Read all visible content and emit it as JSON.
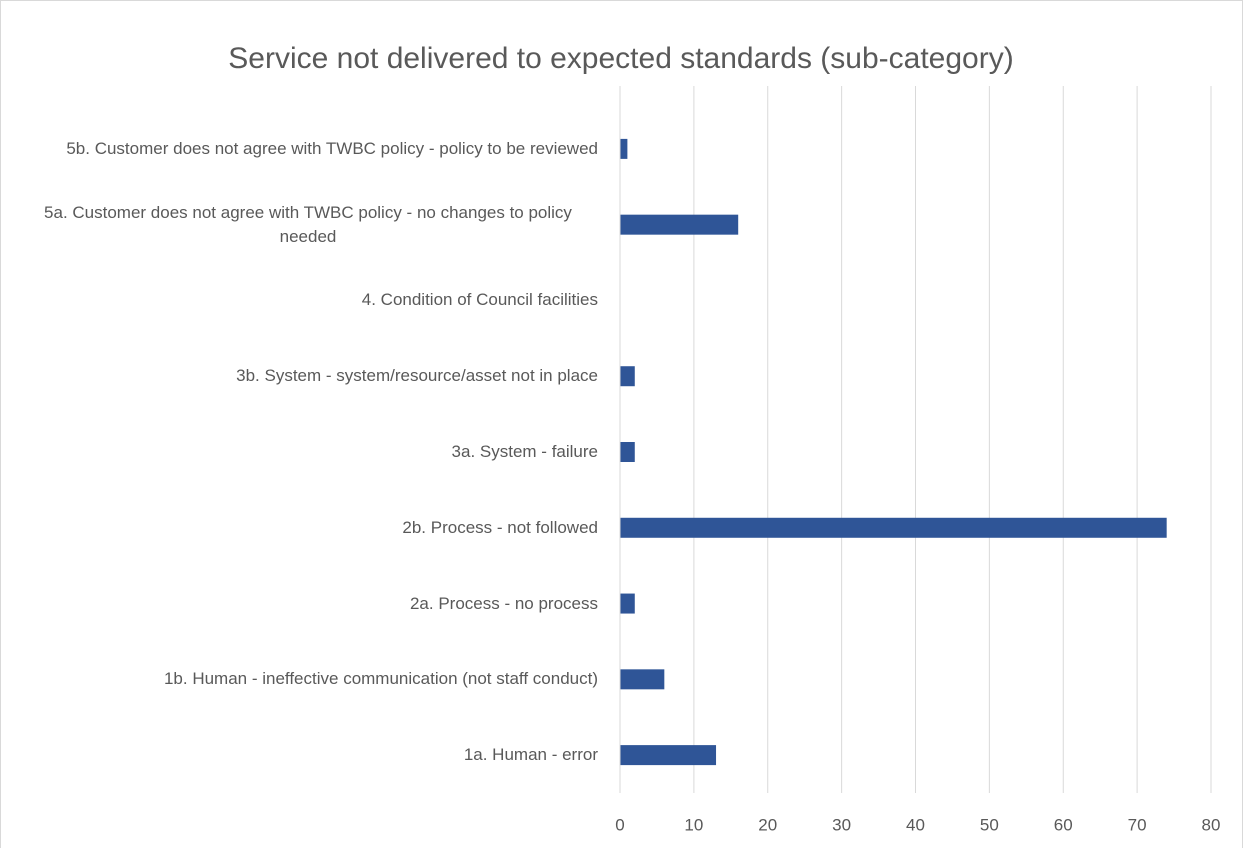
{
  "chart_data": {
    "type": "hbar",
    "title": "Service not delivered to expected standards (sub-category)",
    "categories": [
      "5b. Customer does not agree with TWBC policy - policy to be reviewed",
      "5a. Customer does not agree with TWBC policy - no changes to policy needed",
      "4. Condition of Council facilities",
      "3b. System - system/resource/asset not in place",
      "3a. System - failure",
      "2b. Process - not followed",
      "2a. Process - no process",
      "1b. Human - ineffective communication (not staff conduct)",
      "1a. Human - error"
    ],
    "values": [
      1,
      16,
      0,
      2,
      2,
      74,
      2,
      6,
      13
    ],
    "color": "#2f5597",
    "xlim": [
      0,
      80
    ],
    "xticks": [
      0,
      10,
      20,
      30,
      40,
      50,
      60,
      70,
      80
    ],
    "grid": true
  }
}
